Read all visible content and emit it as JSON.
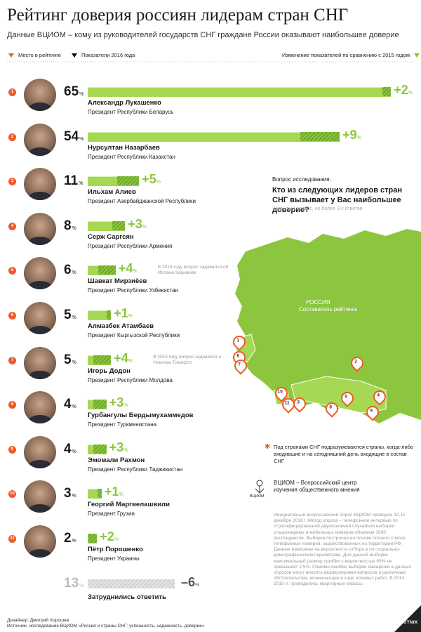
{
  "header": {
    "title": "Рейтинг доверия россиян лидерам стран СНГ",
    "subtitle": "Данные ВЦИОМ – кому из руководителей государств СНГ граждане России оказывают наибольшее доверие"
  },
  "legend": {
    "rank": "Место в рейтинге",
    "value_2016": "Показатели 2016 года",
    "change": "Изменение показателей по сравнению с 2015 годом"
  },
  "colors": {
    "accent": "#f05a28",
    "bar": "#a6d854",
    "change": "#8cc63f",
    "map": "#8cc63f"
  },
  "chart_data": {
    "type": "bar",
    "unit": "%",
    "categories": [
      "Александр Лукашенко",
      "Нурсултан Назарбаев",
      "Ильхам Алиев",
      "Серж Саргсян",
      "Шавкат Мирзиёев",
      "Алмазбек Атамбаев",
      "Игорь Додон",
      "Гурбангулы Бердымухаммедов",
      "Эмомали Рахмон",
      "Георгий Маргвелашвили",
      "Пётр Порошенко",
      "Затруднились ответить"
    ],
    "series": [
      {
        "values": [
          65,
          54,
          11,
          8,
          6,
          5,
          5,
          4,
          4,
          3,
          2,
          13
        ]
      }
    ],
    "change_vs_2015": [
      "+2",
      "+9",
      "+5",
      "+3",
      "+4",
      "+1",
      "+4",
      "+3",
      "+3",
      "+1",
      "+2",
      "–6"
    ],
    "items": [
      {
        "rank": "1",
        "value": 65,
        "change": "+2",
        "change_value": 2,
        "name": "Александр Лукашенко",
        "title": "Президент Республики Беларусь"
      },
      {
        "rank": "2",
        "value": 54,
        "change": "+9",
        "change_value": 9,
        "name": "Нурсултан Назарбаев",
        "title": "Президент Республики Казахстан"
      },
      {
        "rank": "3",
        "value": 11,
        "change": "+5",
        "change_value": 5,
        "name": "Ильхам Алиев",
        "title": "Президент Азербайджанской Республики"
      },
      {
        "rank": "4",
        "value": 8,
        "change": "+3",
        "change_value": 3,
        "name": "Серж Саргсян",
        "title": "Президент Республики Армения"
      },
      {
        "rank": "5",
        "value": 6,
        "change": "+4",
        "change_value": 4,
        "name": "Шавкат Мирзиёев",
        "title": "Президент Республики Узбекистан",
        "note": "В 2015 году вопрос задавался об Исламе Каримове"
      },
      {
        "rank": "6",
        "value": 5,
        "change": "+1",
        "change_value": 1,
        "name": "Алмазбек Атамбаев",
        "title": "Президент Кыргызской Республики"
      },
      {
        "rank": "7",
        "value": 5,
        "change": "+4",
        "change_value": 4,
        "name": "Игорь Додон",
        "title": "Президент Республики Молдова",
        "note": "В 2015 году вопрос задавался о Николае Тимофти"
      },
      {
        "rank": "8",
        "value": 4,
        "change": "+3",
        "change_value": 3,
        "name": "Гурбангулы Бердымухаммедов",
        "title": "Президент Туркменистана"
      },
      {
        "rank": "9",
        "value": 4,
        "change": "+3",
        "change_value": 3,
        "name": "Эмомали Рахмон",
        "title": "Президент Республики Таджикистан"
      },
      {
        "rank": "10",
        "value": 3,
        "change": "+1",
        "change_value": 1,
        "name": "Георгий Маргвелашвили",
        "title": "Президент Грузии"
      },
      {
        "rank": "11",
        "value": 2,
        "change": "+2",
        "change_value": 2,
        "name": "Пётр Порошенко",
        "title": "Президент Украины"
      }
    ],
    "undecided": {
      "value": 13,
      "change": "–6",
      "change_value": -6,
      "label": "Затруднились ответить"
    }
  },
  "question": {
    "label": "Вопрос исследования:",
    "text": "Кто из следующих лидеров стран СНГ вызывает у Вас наибольшее доверие?",
    "note": "Закрытый вопрос, не более 3-х ответов"
  },
  "map": {
    "russia_label": "РОССИЯ",
    "russia_sub": "Составитель рейтинга",
    "pins": [
      "1",
      "2",
      "3",
      "4",
      "5",
      "6",
      "7",
      "8",
      "9",
      "10",
      "11"
    ]
  },
  "cis_note": "Под странами СНГ подразумеваются страны, когда-либо входившие и на сегодняшний день входящие в состав СНГ",
  "vciom": {
    "logo_text": "ВЦИОМ",
    "name": "ВЦИОМ – Всероссийский центр изучения общественного мнения"
  },
  "methodology": "Инициативный всероссийский опрос ВЦИОМ проведен 10-11 декабря 2016 г. Метод опроса – телефонное интервью по стратифицированной двухосновной случайной выборке стационарных и мобильных номеров объемом 1600 респондентов. Выборка построена на основе полного списка телефонных номеров, задействованных на территории РФ. Данные взвешены на вероятность отбора и по социально-демографическим параметрам. Для данной выборки максимальный размер ошибки с вероятностью 95% не превышает 2,5%. Помимо ошибки выборки смещение в данных опросов могут вносить формулировки вопросов и различные обстоятельства, возникающие в ходе полевых работ. В 2010-2015 гг. проводились квартирные опросы.",
  "footer": {
    "designer": "Дизайнер: Дмитрий Хорошев",
    "source": "Источник: исследование ВЦИОМ «Россия и страны СНГ: успешность, надежность, доверие»"
  },
  "brand": "SPUTNIK"
}
